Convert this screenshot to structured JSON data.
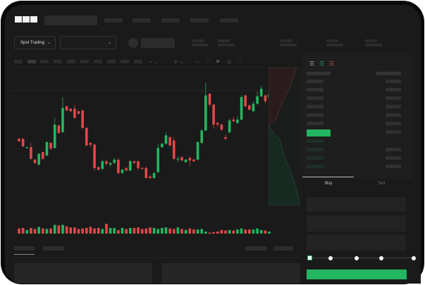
{
  "header": {
    "logo": "OKX"
  },
  "toolbar": {
    "market_dropdown": "Spot Trading",
    "pair_dropdown": ""
  },
  "trade_panel": {
    "tabs": [
      {
        "label": "Buy",
        "active": true
      },
      {
        "label": "Sell",
        "active": false
      }
    ],
    "slider_percent": 0
  },
  "colors": {
    "up": "#23b660",
    "down": "#e04848",
    "background": "#1a1a1a",
    "buy_button": "#23b660"
  },
  "chart_data": {
    "type": "candlestick",
    "ohlc": [
      [
        118,
        119,
        114,
        115
      ],
      [
        118,
        119,
        108,
        109
      ],
      [
        107,
        109,
        106,
        108
      ],
      [
        108,
        113,
        93,
        94
      ],
      [
        93,
        94,
        88,
        89
      ],
      [
        87,
        101,
        86,
        100
      ],
      [
        102,
        103,
        93,
        94
      ],
      [
        98,
        115,
        97,
        114
      ],
      [
        113,
        114,
        105,
        106
      ],
      [
        107,
        143,
        106,
        135
      ],
      [
        134,
        135,
        124,
        125
      ],
      [
        126,
        168,
        125,
        155
      ],
      [
        157,
        158,
        151,
        152
      ],
      [
        154,
        155,
        150,
        151
      ],
      [
        154,
        158,
        142,
        143
      ],
      [
        151,
        152,
        147,
        148
      ],
      [
        152,
        153,
        130,
        131
      ],
      [
        131,
        132,
        109,
        110
      ],
      [
        113,
        114,
        108,
        111
      ],
      [
        111,
        112,
        80,
        83
      ],
      [
        84,
        85,
        80,
        81
      ],
      [
        82,
        93,
        80,
        91
      ],
      [
        91,
        93,
        86,
        88
      ],
      [
        87,
        90,
        84,
        89
      ],
      [
        89,
        95,
        88,
        93
      ],
      [
        93,
        95,
        75,
        77
      ],
      [
        77,
        82,
        76,
        81
      ],
      [
        83,
        84,
        79,
        80
      ],
      [
        80,
        93,
        79,
        91
      ],
      [
        91,
        92,
        88,
        89
      ],
      [
        91,
        92,
        80,
        83
      ],
      [
        83,
        84,
        81,
        82
      ],
      [
        83,
        85,
        70,
        71
      ],
      [
        73,
        75,
        70,
        71
      ],
      [
        71,
        78,
        70,
        77
      ],
      [
        78,
        112,
        77,
        107
      ],
      [
        108,
        113,
        107,
        112
      ],
      [
        112,
        126,
        111,
        122
      ],
      [
        120,
        121,
        109,
        110
      ],
      [
        116,
        120,
        93,
        94
      ],
      [
        93,
        97,
        90,
        94
      ],
      [
        96,
        97,
        91,
        92
      ],
      [
        90,
        94,
        89,
        93
      ],
      [
        95,
        97,
        85,
        92
      ],
      [
        93,
        94,
        90,
        91
      ],
      [
        93,
        115,
        92,
        114
      ],
      [
        113,
        130,
        112,
        128
      ],
      [
        128,
        185,
        127,
        170
      ],
      [
        172,
        173,
        156,
        159
      ],
      [
        159,
        160,
        130,
        135
      ],
      [
        137,
        138,
        132,
        135
      ],
      [
        135,
        136,
        127,
        129
      ],
      [
        120,
        123,
        117,
        118
      ],
      [
        126,
        142,
        124,
        140
      ],
      [
        141,
        144,
        138,
        139
      ],
      [
        137,
        145,
        136,
        141
      ],
      [
        141,
        170,
        140,
        168
      ],
      [
        170,
        171,
        156,
        157
      ],
      [
        158,
        159,
        152,
        153
      ],
      [
        151,
        163,
        150,
        160
      ],
      [
        160,
        175,
        159,
        169
      ],
      [
        169,
        182,
        168,
        178
      ],
      [
        170,
        171,
        160,
        163
      ],
      [
        167,
        178,
        166,
        172
      ]
    ],
    "volume": [
      10,
      11,
      7,
      11,
      9,
      13,
      10,
      9,
      10,
      17,
      16,
      17,
      14,
      12,
      12,
      9,
      10,
      11,
      13,
      10,
      11,
      9,
      19,
      11,
      11,
      7,
      11,
      9,
      11,
      11,
      12,
      9,
      10,
      12,
      11,
      9,
      11,
      12,
      10,
      9,
      12,
      9,
      7,
      10,
      8,
      8,
      9,
      4,
      2,
      3,
      4,
      7,
      6,
      7,
      6,
      8,
      10,
      8,
      8,
      8,
      10,
      7,
      6,
      4
    ],
    "ylim": [
      60,
      200
    ]
  }
}
